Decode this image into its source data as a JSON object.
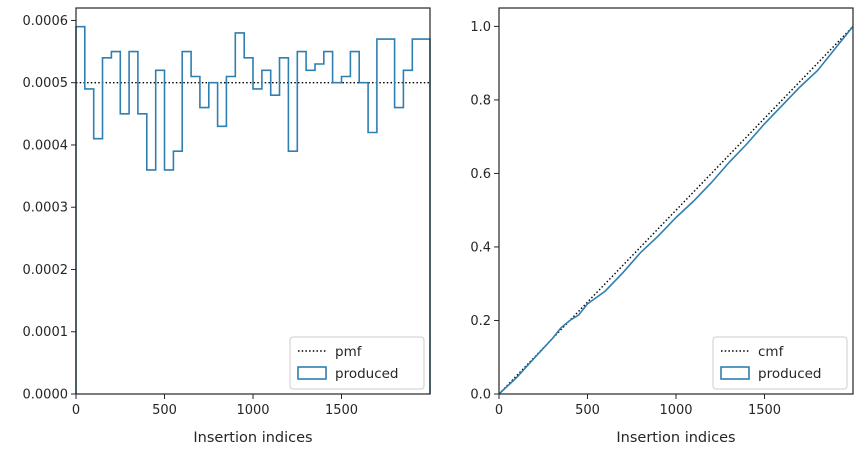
{
  "chart_data": [
    {
      "type": "histogram-step",
      "title": "",
      "xlabel": "Insertion indices",
      "ylabel": "",
      "xlim": [
        0,
        2000
      ],
      "ylim": [
        0,
        0.00062
      ],
      "xticks": [
        0,
        500,
        1000,
        1500
      ],
      "xtick_labels": [
        "0",
        "500",
        "1000",
        "1500"
      ],
      "yticks": [
        0,
        0.0001,
        0.0002,
        0.0003,
        0.0004,
        0.0005,
        0.0006
      ],
      "ytick_labels": [
        "0.0000",
        "0.0001",
        "0.0002",
        "0.0003",
        "0.0004",
        "0.0005",
        "0.0006"
      ],
      "grid": false,
      "legend_position": "lower-right",
      "series": [
        {
          "name": "pmf",
          "style": "dotted",
          "color": "#000000",
          "x": [
            0,
            2000
          ],
          "values": [
            0.0005,
            0.0005
          ]
        },
        {
          "name": "produced",
          "style": "step",
          "color": "#2f7fb0",
          "bin_width": 50,
          "bin_start": 0,
          "values": [
            0.00059,
            0.00049,
            0.00041,
            0.00054,
            0.00055,
            0.00045,
            0.00055,
            0.00045,
            0.00036,
            0.00052,
            0.00036,
            0.00039,
            0.00055,
            0.00051,
            0.00046,
            0.0005,
            0.00043,
            0.00051,
            0.00058,
            0.00054,
            0.00049,
            0.00052,
            0.00048,
            0.00054,
            0.00039,
            0.00055,
            0.00052,
            0.00053,
            0.00055,
            0.0005,
            0.00051,
            0.00055,
            0.0005,
            0.00042,
            0.00057,
            0.00057,
            0.00046,
            0.00052,
            0.00057,
            0.00057
          ]
        }
      ]
    },
    {
      "type": "line",
      "title": "",
      "xlabel": "Insertion indices",
      "ylabel": "",
      "xlim": [
        0,
        2000
      ],
      "ylim": [
        0,
        1.05
      ],
      "xticks": [
        0,
        500,
        1000,
        1500
      ],
      "xtick_labels": [
        "0",
        "500",
        "1000",
        "1500"
      ],
      "yticks": [
        0,
        0.2,
        0.4,
        0.6,
        0.8,
        1.0
      ],
      "ytick_labels": [
        "0.0",
        "0.2",
        "0.4",
        "0.6",
        "0.8",
        "1.0"
      ],
      "grid": false,
      "legend_position": "lower-right",
      "series": [
        {
          "name": "cmf",
          "style": "dotted",
          "color": "#000000",
          "x": [
            0,
            2000
          ],
          "values": [
            0,
            1.0
          ]
        },
        {
          "name": "produced",
          "style": "solid",
          "color": "#2f7fb0",
          "x": [
            0,
            100,
            200,
            300,
            350,
            400,
            450,
            500,
            600,
            700,
            800,
            900,
            1000,
            1100,
            1200,
            1300,
            1400,
            1500,
            1600,
            1700,
            1800,
            1900,
            2000
          ],
          "values": [
            0,
            0.045,
            0.098,
            0.15,
            0.18,
            0.2,
            0.215,
            0.245,
            0.28,
            0.33,
            0.385,
            0.43,
            0.48,
            0.525,
            0.575,
            0.63,
            0.68,
            0.735,
            0.785,
            0.835,
            0.88,
            0.94,
            1.0
          ]
        }
      ]
    }
  ]
}
